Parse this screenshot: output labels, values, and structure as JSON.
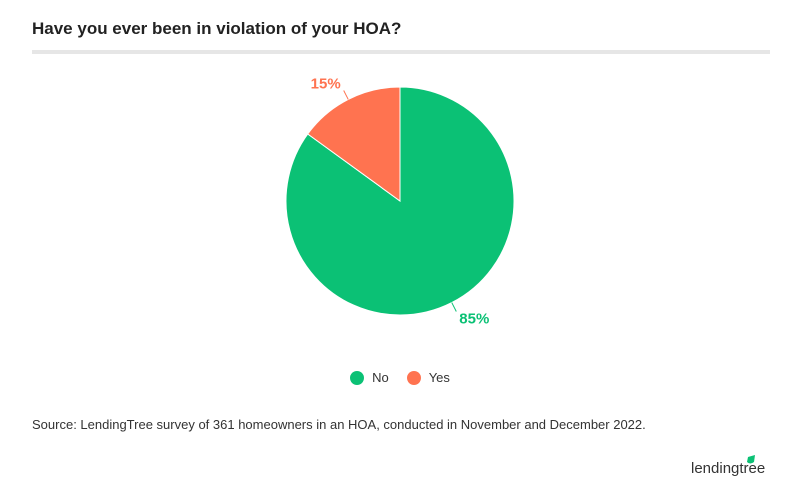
{
  "chart_data": {
    "type": "pie",
    "title": "Have you ever been in violation of your HOA?",
    "slices": [
      {
        "label": "No",
        "value": 85,
        "data_label": "85%",
        "color": "#0bc175"
      },
      {
        "label": "Yes",
        "value": 15,
        "data_label": "15%",
        "color": "#ff7350"
      }
    ],
    "legend_position": "bottom"
  },
  "source": "Source: LendingTree survey of 361 homeowners in an HOA, conducted in November and December 2022.",
  "logo": "lendingtree"
}
